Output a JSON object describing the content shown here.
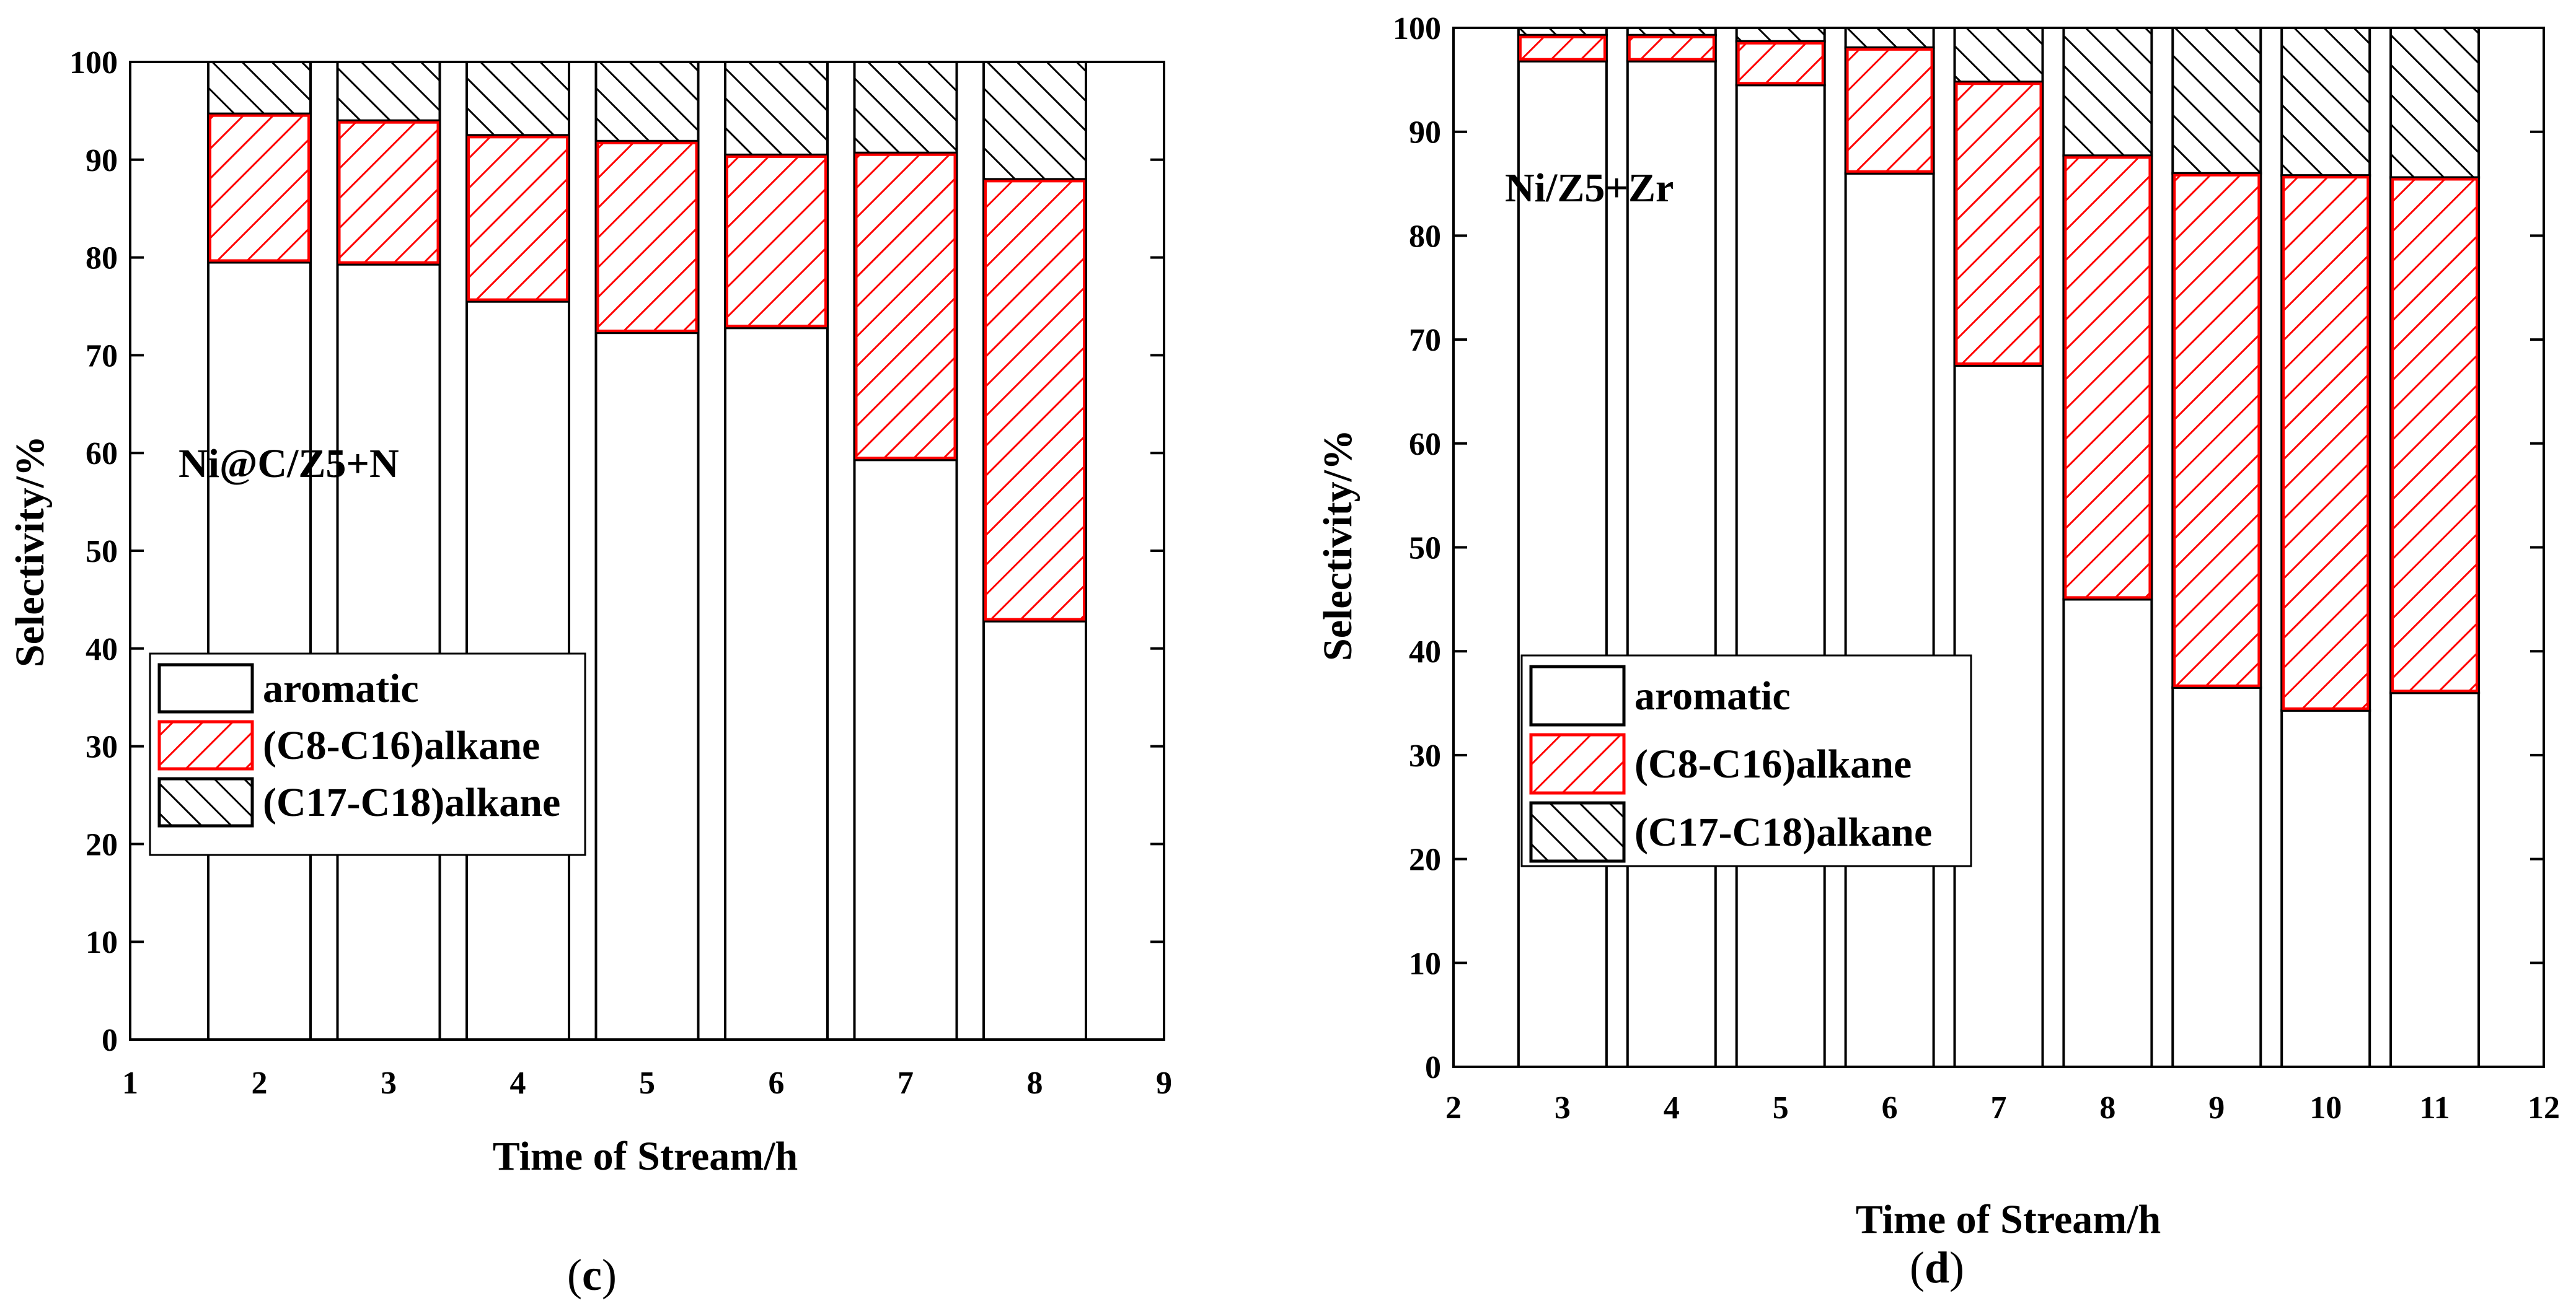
{
  "chart_data": [
    {
      "type": "bar",
      "stacked": true,
      "panel_label_open": "(",
      "panel_label_letter": "c",
      "panel_label_close": ")",
      "annotation": "Ni@C/Z5+N",
      "xlabel": "Time of Stream/h",
      "ylabel": "Selectivity/%",
      "xlim": [
        1,
        9
      ],
      "ylim": [
        0,
        100
      ],
      "xticks": [
        "1",
        "2",
        "3",
        "4",
        "5",
        "6",
        "7",
        "8",
        "9"
      ],
      "yticks": [
        "0",
        "10",
        "20",
        "30",
        "40",
        "50",
        "60",
        "70",
        "80",
        "90",
        "100"
      ],
      "x": [
        2,
        3,
        4,
        5,
        6,
        7,
        8
      ],
      "series": [
        {
          "name": "aromatic",
          "values": [
            79.5,
            79.3,
            75.5,
            72.3,
            72.8,
            59.3,
            42.8
          ]
        },
        {
          "name": "(C8-C16)alkane",
          "values": [
            15.2,
            14.7,
            17.0,
            19.6,
            17.7,
            31.4,
            45.2
          ]
        },
        {
          "name": "(C17-C18)alkane",
          "values": [
            5.3,
            6.0,
            7.5,
            8.1,
            9.5,
            9.3,
            12.0
          ]
        }
      ],
      "legend_position": "lower-left"
    },
    {
      "type": "bar",
      "stacked": true,
      "panel_label_open": "(",
      "panel_label_letter": "d",
      "panel_label_close": ")",
      "annotation": "Ni/Z5+Zr",
      "xlabel": "Time of Stream/h",
      "ylabel": "Selectivity/%",
      "xlim": [
        2,
        12
      ],
      "ylim": [
        0,
        100
      ],
      "xticks": [
        "2",
        "3",
        "4",
        "5",
        "6",
        "7",
        "8",
        "9",
        "10",
        "11",
        "12"
      ],
      "yticks": [
        "0",
        "10",
        "20",
        "30",
        "40",
        "50",
        "60",
        "70",
        "80",
        "90",
        "100"
      ],
      "x": [
        3,
        4,
        5,
        6,
        7,
        8,
        9,
        10,
        11
      ],
      "series": [
        {
          "name": "aromatic",
          "values": [
            96.8,
            96.8,
            94.5,
            86.0,
            67.5,
            45.0,
            36.5,
            34.3,
            36.0
          ]
        },
        {
          "name": "(C8-C16)alkane",
          "values": [
            2.5,
            2.5,
            4.2,
            12.1,
            27.3,
            42.7,
            49.5,
            51.5,
            49.6
          ]
        },
        {
          "name": "(C17-C18)alkane",
          "values": [
            0.7,
            0.7,
            1.3,
            1.9,
            5.2,
            12.3,
            14.0,
            14.2,
            14.4
          ]
        }
      ],
      "legend_position": "lower-left"
    }
  ],
  "colors": {
    "aromatic_fill": "#ffffff",
    "c8_c16_hatch": "#ff0000",
    "c17_c18_hatch": "#000000",
    "axis": "#000000"
  }
}
